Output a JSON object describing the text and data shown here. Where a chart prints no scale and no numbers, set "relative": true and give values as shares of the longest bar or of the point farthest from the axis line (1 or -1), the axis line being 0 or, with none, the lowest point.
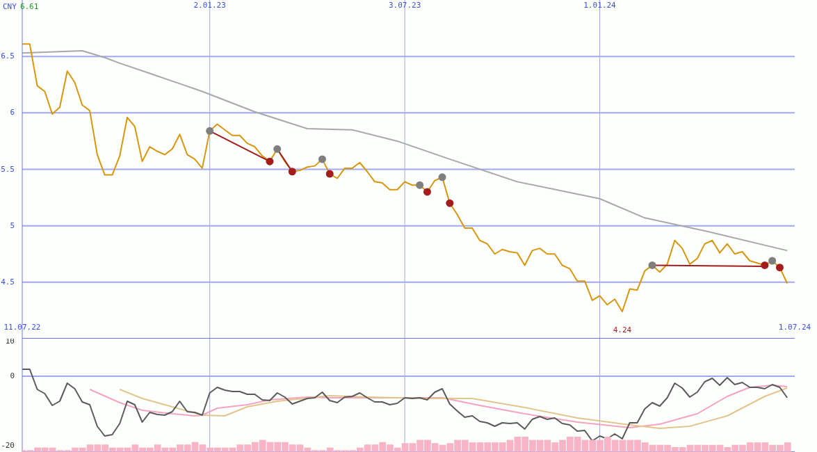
{
  "chart_data": [
    {
      "type": "line",
      "ylabel": "CNY",
      "annotations": [
        "6.61",
        {
          "text": "4.24",
          "x": "2024-01-22",
          "y": 4.24
        }
      ],
      "x": [
        "2022-07-11",
        "2022-07-18",
        "2022-07-25",
        "2022-08-01",
        "2022-08-08",
        "2022-08-15",
        "2022-08-22",
        "2022-08-29",
        "2022-09-05",
        "2022-09-12",
        "2022-09-19",
        "2022-09-26",
        "2022-10-03",
        "2022-10-10",
        "2022-10-17",
        "2022-10-24",
        "2022-10-31",
        "2022-11-07",
        "2022-11-14",
        "2022-11-21",
        "2022-11-28",
        "2022-12-05",
        "2022-12-12",
        "2022-12-19",
        "2022-12-26",
        "2023-01-02",
        "2023-01-09",
        "2023-01-16",
        "2023-01-23",
        "2023-01-30",
        "2023-02-06",
        "2023-02-13",
        "2023-02-20",
        "2023-02-27",
        "2023-03-06",
        "2023-03-13",
        "2023-03-20",
        "2023-03-27",
        "2023-04-03",
        "2023-04-10",
        "2023-04-17",
        "2023-04-24",
        "2023-05-01",
        "2023-05-08",
        "2023-05-15",
        "2023-05-22",
        "2023-05-29",
        "2023-06-05",
        "2023-06-12",
        "2023-06-19",
        "2023-06-26",
        "2023-07-03",
        "2023-07-10",
        "2023-07-17",
        "2023-07-24",
        "2023-07-31",
        "2023-08-07",
        "2023-08-14",
        "2023-08-21",
        "2023-08-28",
        "2023-09-04",
        "2023-09-11",
        "2023-09-18",
        "2023-09-25",
        "2023-10-02",
        "2023-10-09",
        "2023-10-16",
        "2023-10-23",
        "2023-10-30",
        "2023-11-06",
        "2023-11-13",
        "2023-11-20",
        "2023-11-27",
        "2023-12-04",
        "2023-12-11",
        "2023-12-18",
        "2023-12-25",
        "2024-01-01",
        "2024-01-08",
        "2024-01-15",
        "2024-01-22",
        "2024-01-29",
        "2024-02-05",
        "2024-02-12",
        "2024-02-19",
        "2024-02-26",
        "2024-03-04",
        "2024-03-11",
        "2024-03-18",
        "2024-03-25",
        "2024-04-01",
        "2024-04-08",
        "2024-04-15",
        "2024-04-22",
        "2024-04-29",
        "2024-05-06",
        "2024-05-13",
        "2024-05-20",
        "2024-05-27",
        "2024-06-03",
        "2024-06-10",
        "2024-06-17",
        "2024-06-24"
      ],
      "series": [
        {
          "type": "line",
          "color": "#a8a8a8",
          "line_style": "solid",
          "x": [
            "2022-07-11",
            "2022-09-05",
            "2022-09-26",
            "2022-10-10",
            "2022-11-07",
            "2022-12-26",
            "2023-02-13",
            "2023-04-03",
            "2023-05-15",
            "2023-06-26",
            "2023-08-14",
            "2023-10-16",
            "2024-01-01",
            "2024-02-12",
            "2024-04-15",
            "2024-06-24"
          ],
          "values": [
            6.53,
            6.55,
            6.49,
            6.44,
            6.35,
            6.19,
            6.01,
            5.86,
            5.85,
            5.75,
            5.59,
            5.39,
            5.24,
            5.07,
            4.94,
            4.78
          ]
        },
        {
          "type": "line",
          "color": "#d8960c",
          "line_style": "solid",
          "values": [
            6.61,
            6.61,
            6.24,
            6.19,
            5.99,
            6.05,
            6.37,
            6.27,
            6.07,
            6.02,
            5.63,
            5.45,
            5.45,
            5.62,
            5.96,
            5.88,
            5.57,
            5.7,
            5.66,
            5.63,
            5.68,
            5.81,
            5.63,
            5.59,
            5.51,
            5.84,
            5.9,
            5.85,
            5.8,
            5.8,
            5.73,
            5.7,
            5.62,
            5.57,
            5.68,
            5.57,
            5.48,
            5.49,
            5.52,
            5.53,
            5.59,
            5.46,
            5.42,
            5.51,
            5.51,
            5.56,
            5.48,
            5.39,
            5.38,
            5.32,
            5.32,
            5.39,
            5.36,
            5.36,
            5.3,
            5.4,
            5.43,
            5.2,
            5.1,
            4.98,
            4.98,
            4.87,
            4.84,
            4.75,
            4.79,
            4.77,
            4.76,
            4.65,
            4.78,
            4.8,
            4.75,
            4.75,
            4.65,
            4.62,
            4.51,
            4.51,
            4.34,
            4.38,
            4.3,
            4.35,
            4.24,
            4.44,
            4.43,
            4.6,
            4.65,
            4.59,
            4.66,
            4.87,
            4.8,
            4.66,
            4.71,
            4.84,
            4.87,
            4.76,
            4.84,
            4.75,
            4.77,
            4.69,
            4.67,
            4.65,
            4.69,
            4.63,
            4.49
          ]
        },
        {
          "type": "line",
          "color": "#a01c1c",
          "line_style": "solid",
          "x": [
            "2023-01-02",
            "2023-02-27"
          ],
          "values": [
            5.84,
            5.57
          ]
        },
        {
          "type": "line",
          "color": "#a01c1c",
          "line_style": "solid",
          "x": [
            "2023-03-06",
            "2023-03-20"
          ],
          "values": [
            5.68,
            5.48
          ]
        },
        {
          "type": "line",
          "color": "#a01c1c",
          "line_style": "solid",
          "x": [
            "2024-02-19",
            "2024-06-03"
          ],
          "values": [
            4.65,
            4.64
          ]
        },
        {
          "type": "scatter",
          "color": "#7f7f7f",
          "marker": "circle",
          "x": [
            "2023-01-02",
            "2023-03-06",
            "2023-04-17",
            "2023-07-17",
            "2023-08-07",
            "2024-02-19",
            "2024-06-10"
          ],
          "values": [
            5.84,
            5.68,
            5.59,
            5.36,
            5.43,
            4.65,
            4.69
          ]
        },
        {
          "type": "scatter",
          "color": "#a51c1c",
          "marker": "circle",
          "x": [
            "2023-02-27",
            "2023-03-20",
            "2023-04-24",
            "2023-07-24",
            "2023-08-14",
            "2024-06-03",
            "2024-06-17"
          ],
          "values": [
            5.57,
            5.48,
            5.46,
            5.3,
            5.2,
            4.65,
            4.63
          ]
        }
      ],
      "xlim": [
        "2022-07-11",
        "2024-07-01"
      ],
      "xticks": [
        {
          "value": "2022-07-11",
          "label": "11.07.22"
        },
        {
          "value": "2024-07-01",
          "label": "1.07.24"
        }
      ],
      "x2lim": [
        "2022-07-11",
        "2024-07-01"
      ],
      "x2ticks": [
        {
          "value": "2023-01-02",
          "label": "2.01.23"
        },
        {
          "value": "2023-07-03",
          "label": "3.07.23"
        },
        {
          "value": "2024-01-01",
          "label": "1.01.24"
        }
      ],
      "ylim": [
        4,
        7
      ],
      "yticks": [
        4.5,
        5,
        5.5,
        6,
        6.5
      ],
      "grid": true
    },
    {
      "type": "line",
      "tick_labels": "y",
      "x": [
        "2022-07-11",
        "2022-07-18",
        "2022-07-25",
        "2022-08-01",
        "2022-08-08",
        "2022-08-15",
        "2022-08-22",
        "2022-08-29",
        "2022-09-05",
        "2022-09-12",
        "2022-09-19",
        "2022-09-26",
        "2022-10-03",
        "2022-10-10",
        "2022-10-17",
        "2022-10-24",
        "2022-10-31",
        "2022-11-07",
        "2022-11-14",
        "2022-11-21",
        "2022-11-28",
        "2022-12-05",
        "2022-12-12",
        "2022-12-19",
        "2022-12-26",
        "2023-01-02",
        "2023-01-09",
        "2023-01-16",
        "2023-01-23",
        "2023-01-30",
        "2023-02-06",
        "2023-02-13",
        "2023-02-20",
        "2023-02-27",
        "2023-03-06",
        "2023-03-13",
        "2023-03-20",
        "2023-03-27",
        "2023-04-03",
        "2023-04-10",
        "2023-04-17",
        "2023-04-24",
        "2023-05-01",
        "2023-05-08",
        "2023-05-15",
        "2023-05-22",
        "2023-05-29",
        "2023-06-05",
        "2023-06-12",
        "2023-06-19",
        "2023-06-26",
        "2023-07-03",
        "2023-07-10",
        "2023-07-17",
        "2023-07-24",
        "2023-07-31",
        "2023-08-07",
        "2023-08-14",
        "2023-08-21",
        "2023-08-28",
        "2023-09-04",
        "2023-09-11",
        "2023-09-18",
        "2023-09-25",
        "2023-10-02",
        "2023-10-09",
        "2023-10-16",
        "2023-10-23",
        "2023-10-30",
        "2023-11-06",
        "2023-11-13",
        "2023-11-20",
        "2023-11-27",
        "2023-12-04",
        "2023-12-11",
        "2023-12-18",
        "2023-12-25",
        "2024-01-01",
        "2024-01-08",
        "2024-01-15",
        "2024-01-22",
        "2024-01-29",
        "2024-02-05",
        "2024-02-12",
        "2024-02-19",
        "2024-02-26",
        "2024-03-04",
        "2024-03-11",
        "2024-03-18",
        "2024-03-25",
        "2024-04-01",
        "2024-04-08",
        "2024-04-15",
        "2024-04-22",
        "2024-04-29",
        "2024-05-06",
        "2024-05-13",
        "2024-05-20",
        "2024-05-27",
        "2024-06-03",
        "2024-06-10",
        "2024-06-17",
        "2024-06-24"
      ],
      "series": [
        {
          "type": "line",
          "color": "#f5a3bf",
          "line_style": "solid",
          "x": [
            "2022-09-12",
            "2022-10-10",
            "2022-10-31",
            "2022-11-28",
            "2022-12-19",
            "2022-12-26",
            "2023-01-09",
            "2023-02-06",
            "2023-02-27",
            "2023-04-03",
            "2023-04-24",
            "2023-05-29",
            "2023-08-07",
            "2023-09-11",
            "2023-10-23",
            "2023-12-11",
            "2024-01-29",
            "2024-02-26",
            "2024-04-01",
            "2024-04-29",
            "2024-05-20",
            "2024-06-10",
            "2024-06-24"
          ],
          "values": [
            -3.8,
            -7.6,
            -9.8,
            -10.8,
            -11.4,
            -11.2,
            -9.2,
            -8.2,
            -6.8,
            -6,
            -6.2,
            -6.2,
            -6.2,
            -8.4,
            -10.8,
            -13.2,
            -14.8,
            -13.8,
            -10.8,
            -5.8,
            -3.2,
            -2.6,
            -3
          ]
        },
        {
          "type": "line",
          "color": "#e2c58c",
          "line_style": "solid",
          "x": [
            "2022-10-10",
            "2022-10-31",
            "2022-11-28",
            "2022-12-19",
            "2022-12-26",
            "2023-01-16",
            "2023-02-06",
            "2023-03-06",
            "2023-04-24",
            "2023-05-29",
            "2023-07-24",
            "2023-09-04",
            "2023-10-23",
            "2023-12-11",
            "2024-01-29",
            "2024-02-26",
            "2024-03-25",
            "2024-04-29",
            "2024-06-03",
            "2024-06-24"
          ],
          "values": [
            -3.8,
            -6.4,
            -8.8,
            -10.6,
            -11.2,
            -11.4,
            -8.8,
            -7.2,
            -5.6,
            -6,
            -6.4,
            -6.4,
            -9,
            -12,
            -14,
            -15,
            -14.4,
            -11.4,
            -5.8,
            -3.4
          ]
        },
        {
          "type": "line",
          "color": "#5a5a5a",
          "line_style": "solid",
          "values": [
            2,
            2,
            -3.8,
            -5,
            -8.4,
            -7.2,
            -2,
            -3.6,
            -7.4,
            -8.2,
            -14.4,
            -17.2,
            -16.8,
            -13.6,
            -7.2,
            -8.2,
            -13.2,
            -10.4,
            -11,
            -11.2,
            -10.2,
            -7.2,
            -10.2,
            -10.4,
            -11.2,
            -4.8,
            -3.2,
            -4,
            -4.4,
            -4.4,
            -5.2,
            -5.2,
            -6.8,
            -7,
            -4.8,
            -6,
            -8,
            -7.2,
            -6.4,
            -6.2,
            -4.6,
            -7,
            -7.6,
            -6,
            -5.8,
            -4.8,
            -6.2,
            -7.4,
            -7.4,
            -8.2,
            -7.8,
            -6.2,
            -6.4,
            -6.2,
            -6.8,
            -4.6,
            -3.6,
            -8,
            -10,
            -11.8,
            -11.4,
            -13,
            -13.4,
            -14.4,
            -13.4,
            -13.6,
            -13.4,
            -15.2,
            -12.4,
            -11.6,
            -12.4,
            -12,
            -13.6,
            -14,
            -15.8,
            -15.6,
            -18.6,
            -17.2,
            -18,
            -16.6,
            -18,
            -13.4,
            -13.4,
            -9.4,
            -7.6,
            -8.6,
            -6.2,
            -2,
            -3.4,
            -6,
            -4.6,
            -1.6,
            -0.6,
            -2.6,
            -0.4,
            -2.4,
            -1.8,
            -3.2,
            -3.2,
            -3.6,
            -2.4,
            -3.2,
            -6.2
          ]
        }
      ],
      "xlim": [
        "2022-07-11",
        "2024-07-01"
      ],
      "ylim": [
        -21.8,
        10.8
      ],
      "yticks": [
        10,
        0,
        -20
      ],
      "ref_lines": [
        {
          "axis": "y",
          "value": 0,
          "color": "#a0a8f0"
        },
        {
          "axis": "x",
          "value": "2023-01-02",
          "color": "#a0a8f0"
        },
        {
          "axis": "x",
          "value": "2023-07-03",
          "color": "#a0a8f0"
        },
        {
          "axis": "x",
          "value": "2024-01-01",
          "color": "#a0a8f0"
        }
      ]
    },
    {
      "type": "bar",
      "relative": true,
      "tick_labels": false,
      "color": "#f8b3c8",
      "x": [
        "2022-07-11",
        "2022-07-18",
        "2022-07-25",
        "2022-08-01",
        "2022-08-08",
        "2022-08-15",
        "2022-08-22",
        "2022-08-29",
        "2022-09-05",
        "2022-09-12",
        "2022-09-19",
        "2022-09-26",
        "2022-10-03",
        "2022-10-10",
        "2022-10-17",
        "2022-10-24",
        "2022-10-31",
        "2022-11-07",
        "2022-11-14",
        "2022-11-21",
        "2022-11-28",
        "2022-12-05",
        "2022-12-12",
        "2022-12-19",
        "2022-12-26",
        "2023-01-02",
        "2023-01-09",
        "2023-01-16",
        "2023-01-23",
        "2023-01-30",
        "2023-02-06",
        "2023-02-13",
        "2023-02-20",
        "2023-02-27",
        "2023-03-06",
        "2023-03-13",
        "2023-03-20",
        "2023-03-27",
        "2023-04-03",
        "2023-04-10",
        "2023-04-17",
        "2023-04-24",
        "2023-05-01",
        "2023-05-08",
        "2023-05-15",
        "2023-05-22",
        "2023-05-29",
        "2023-06-05",
        "2023-06-12",
        "2023-06-19",
        "2023-06-26",
        "2023-07-03",
        "2023-07-10",
        "2023-07-17",
        "2023-07-24",
        "2023-07-31",
        "2023-08-07",
        "2023-08-14",
        "2023-08-21",
        "2023-08-28",
        "2023-09-04",
        "2023-09-11",
        "2023-09-18",
        "2023-09-25",
        "2023-10-02",
        "2023-10-09",
        "2023-10-16",
        "2023-10-23",
        "2023-10-30",
        "2023-11-06",
        "2023-11-13",
        "2023-11-20",
        "2023-11-27",
        "2023-12-04",
        "2023-12-11",
        "2023-12-18",
        "2023-12-25",
        "2024-01-01",
        "2024-01-08",
        "2024-01-15",
        "2024-01-22",
        "2024-01-29",
        "2024-02-05",
        "2024-02-12",
        "2024-02-19",
        "2024-02-26",
        "2024-03-04",
        "2024-03-11",
        "2024-03-18",
        "2024-03-25",
        "2024-04-01",
        "2024-04-08",
        "2024-04-15",
        "2024-04-22",
        "2024-04-29",
        "2024-05-06",
        "2024-05-13",
        "2024-05-20",
        "2024-05-27",
        "2024-06-03",
        "2024-06-10",
        "2024-06-17",
        "2024-06-24"
      ],
      "values": [
        0.12,
        0.12,
        0.29,
        0.29,
        0.29,
        0.12,
        0.12,
        0.29,
        0.29,
        0.49,
        0.49,
        0.49,
        0.29,
        0.29,
        0.29,
        0.49,
        0.29,
        0.29,
        0.49,
        0.29,
        0.29,
        0.49,
        0.49,
        0.65,
        0.49,
        0.29,
        0.29,
        0.29,
        0.29,
        0.49,
        0.49,
        0.65,
        0.79,
        0.65,
        0.65,
        0.65,
        0.49,
        0.49,
        0.29,
        0.12,
        0.12,
        0.29,
        0.12,
        0.12,
        0.12,
        0.29,
        0.49,
        0.49,
        0.65,
        0.49,
        0.29,
        0.58,
        0.58,
        0.79,
        0.79,
        0.58,
        0.47,
        0.58,
        0.79,
        0.79,
        0.63,
        0.63,
        0.63,
        0.63,
        0.63,
        0.79,
        1,
        1,
        0.79,
        0.79,
        0.79,
        0.63,
        0.79,
        1,
        1,
        0.79,
        0.79,
        0.79,
        1,
        0.79,
        0.79,
        0.79,
        0.79,
        0.63,
        0.47,
        0.47,
        0.47,
        0.32,
        0.32,
        0.47,
        0.47,
        0.47,
        0.47,
        0.47,
        0.32,
        0.47,
        0.47,
        0.63,
        0.63,
        0.63,
        0.47,
        0.47,
        0.63
      ],
      "xlim": [
        "2022-07-11",
        "2024-07-01"
      ]
    }
  ]
}
